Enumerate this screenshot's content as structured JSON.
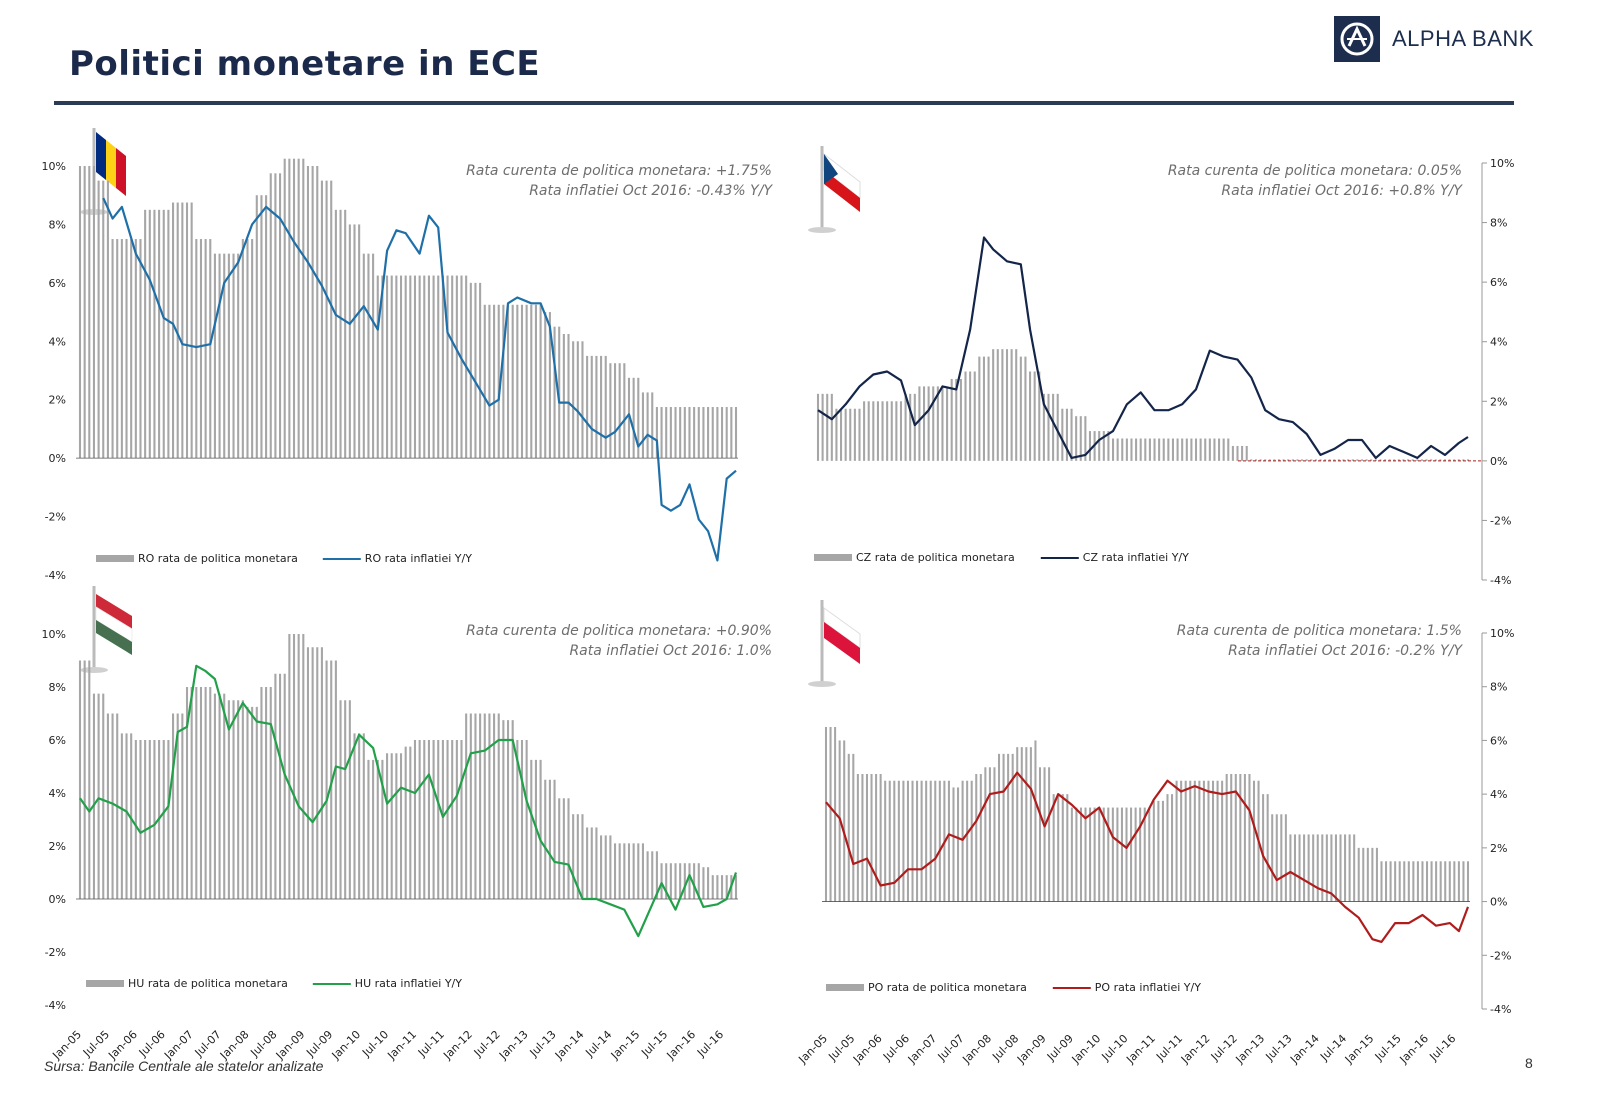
{
  "page": {
    "title": "Politici monetare in ECE",
    "logo_text": "ALPHA BANK",
    "source": "Sursa: Bancile Centrale ale statelor analizate",
    "page_number": "8"
  },
  "colors": {
    "bars": "#a6a6a6",
    "title": "#1b2a4a",
    "ro_line": "#1f6fa8",
    "cz_line": "#14254a",
    "hu_line": "#22a04a",
    "po_line": "#b01c1c"
  },
  "x_tick_labels": [
    "Jan-05",
    "Jul-05",
    "Jan-06",
    "Jul-06",
    "Jan-07",
    "Jul-07",
    "Jan-08",
    "Jul-08",
    "Jan-09",
    "Jul-09",
    "Jan-10",
    "Jul-10",
    "Jan-11",
    "Jul-11",
    "Jan-12",
    "Jul-12",
    "Jan-13",
    "Jul-13",
    "Jan-14",
    "Jul-14",
    "Jan-15",
    "Jul-15",
    "Jan-16",
    "Jul-16"
  ],
  "y_tick_labels": [
    "10%",
    "8%",
    "6%",
    "4%",
    "2%",
    "0%",
    "-2%",
    "-4%"
  ],
  "chart_data": [
    {
      "type": "bar+line",
      "id": "RO",
      "annotation_line1": "Rata curenta de politica monetara: +1.75%",
      "annotation_line2": "Rata inflatiei Oct 2016: -0.43% Y/Y",
      "axis_side": "left",
      "ylim": [
        -4,
        10
      ],
      "series": [
        {
          "name": "RO rata de politica monetara",
          "kind": "bar",
          "x": [
            "2005-01",
            "2005-05",
            "2005-08",
            "2006-03",
            "2006-09",
            "2007-02",
            "2007-06",
            "2007-09",
            "2007-12",
            "2008-03",
            "2008-06",
            "2008-09",
            "2009-02",
            "2009-05",
            "2009-08",
            "2009-11",
            "2010-02",
            "2010-05",
            "2010-08",
            "2011-01",
            "2011-07",
            "2012-01",
            "2012-04",
            "2012-07",
            "2013-01",
            "2013-05",
            "2013-07",
            "2013-09",
            "2013-11",
            "2014-02",
            "2014-04",
            "2014-07",
            "2014-11",
            "2015-02",
            "2015-05",
            "2016-10"
          ],
          "values": [
            10.0,
            9.5,
            7.5,
            8.5,
            8.75,
            7.5,
            7.0,
            7.0,
            7.5,
            9.0,
            9.75,
            10.25,
            10.0,
            9.5,
            8.5,
            8.0,
            7.0,
            6.25,
            6.25,
            6.25,
            6.25,
            6.0,
            5.25,
            5.25,
            5.25,
            5.0,
            4.5,
            4.25,
            4.0,
            3.5,
            3.5,
            3.25,
            2.75,
            2.25,
            1.75,
            1.75
          ]
        },
        {
          "name": "RO rata inflatiei Y/Y",
          "kind": "line",
          "x": [
            "2005-06",
            "2005-08",
            "2005-10",
            "2006-01",
            "2006-04",
            "2006-07",
            "2006-09",
            "2006-11",
            "2007-02",
            "2007-05",
            "2007-08",
            "2007-11",
            "2008-02",
            "2008-05",
            "2008-08",
            "2008-11",
            "2009-02",
            "2009-05",
            "2009-08",
            "2009-11",
            "2010-02",
            "2010-05",
            "2010-07",
            "2010-09",
            "2010-11",
            "2011-02",
            "2011-04",
            "2011-06",
            "2011-08",
            "2011-11",
            "2012-02",
            "2012-05",
            "2012-07",
            "2012-09",
            "2012-11",
            "2013-02",
            "2013-04",
            "2013-06",
            "2013-08",
            "2013-10",
            "2013-12",
            "2014-03",
            "2014-06",
            "2014-08",
            "2014-11",
            "2015-01",
            "2015-03",
            "2015-05",
            "2015-06",
            "2015-08",
            "2015-10",
            "2015-12",
            "2016-02",
            "2016-04",
            "2016-06",
            "2016-08",
            "2016-10"
          ],
          "values": [
            8.9,
            8.2,
            8.6,
            7.0,
            6.1,
            4.8,
            4.6,
            3.9,
            3.8,
            3.9,
            6.0,
            6.7,
            8.0,
            8.6,
            8.2,
            7.4,
            6.7,
            5.9,
            4.9,
            4.6,
            5.2,
            4.4,
            7.1,
            7.8,
            7.7,
            7.0,
            8.3,
            7.9,
            4.3,
            3.4,
            2.6,
            1.8,
            2.0,
            5.3,
            5.5,
            5.3,
            5.3,
            4.5,
            1.9,
            1.9,
            1.6,
            1.0,
            0.7,
            0.9,
            1.5,
            0.4,
            0.8,
            0.6,
            -1.6,
            -1.8,
            -1.6,
            -0.9,
            -2.1,
            -2.5,
            -3.5,
            -0.7,
            -0.43
          ]
        }
      ]
    },
    {
      "type": "bar+line",
      "id": "CZ",
      "annotation_line1": "Rata curenta de politica monetara: 0.05%",
      "annotation_line2": "Rata inflatiei Oct 2016: +0.8% Y/Y",
      "axis_side": "right",
      "ylim": [
        -4,
        10
      ],
      "series": [
        {
          "name": "CZ rata de politica monetara",
          "kind": "bar",
          "x": [
            "2005-01",
            "2005-05",
            "2005-11",
            "2006-08",
            "2006-11",
            "2007-06",
            "2007-09",
            "2007-12",
            "2008-03",
            "2008-09",
            "2008-11",
            "2009-02",
            "2009-06",
            "2009-09",
            "2009-12",
            "2010-05",
            "2012-07",
            "2012-11",
            "2016-10"
          ],
          "values": [
            2.25,
            1.75,
            2.0,
            2.25,
            2.5,
            2.75,
            3.0,
            3.5,
            3.75,
            3.5,
            3.0,
            2.25,
            1.75,
            1.5,
            1.0,
            0.75,
            0.5,
            0.05,
            0.05
          ]
        },
        {
          "name": "CZ rata inflatiei Y/Y",
          "kind": "line",
          "x": [
            "2005-01",
            "2005-04",
            "2005-07",
            "2005-10",
            "2006-01",
            "2006-04",
            "2006-07",
            "2006-10",
            "2007-01",
            "2007-04",
            "2007-07",
            "2007-10",
            "2008-01",
            "2008-03",
            "2008-06",
            "2008-09",
            "2008-11",
            "2009-02",
            "2009-05",
            "2009-08",
            "2009-11",
            "2010-02",
            "2010-05",
            "2010-08",
            "2010-11",
            "2011-02",
            "2011-05",
            "2011-08",
            "2011-11",
            "2012-02",
            "2012-05",
            "2012-08",
            "2012-11",
            "2013-02",
            "2013-05",
            "2013-08",
            "2013-11",
            "2014-02",
            "2014-05",
            "2014-08",
            "2014-11",
            "2015-02",
            "2015-05",
            "2015-08",
            "2015-11",
            "2016-02",
            "2016-05",
            "2016-08",
            "2016-10"
          ],
          "values": [
            1.7,
            1.4,
            1.9,
            2.5,
            2.9,
            3.0,
            2.7,
            1.2,
            1.7,
            2.5,
            2.4,
            4.4,
            7.5,
            7.1,
            6.7,
            6.6,
            4.4,
            1.9,
            1.0,
            0.1,
            0.2,
            0.7,
            1.0,
            1.9,
            2.3,
            1.7,
            1.7,
            1.9,
            2.4,
            3.7,
            3.5,
            3.4,
            2.8,
            1.7,
            1.4,
            1.3,
            0.9,
            0.2,
            0.4,
            0.7,
            0.7,
            0.1,
            0.5,
            0.3,
            0.1,
            0.5,
            0.2,
            0.6,
            0.8
          ]
        }
      ]
    },
    {
      "type": "bar+line",
      "id": "HU",
      "annotation_line1": "Rata curenta de politica monetara: +0.90%",
      "annotation_line2": "Rata inflatiei Oct 2016: 1.0%",
      "axis_side": "left",
      "ylim": [
        -4,
        10
      ],
      "series": [
        {
          "name": "HU rata de politica monetara",
          "kind": "bar",
          "x": [
            "2005-01",
            "2005-04",
            "2005-07",
            "2005-10",
            "2006-01",
            "2006-07",
            "2006-09",
            "2006-12",
            "2007-06",
            "2007-09",
            "2008-01",
            "2008-04",
            "2008-07",
            "2008-10",
            "2008-12",
            "2009-02",
            "2009-06",
            "2009-09",
            "2009-12",
            "2010-03",
            "2010-07",
            "2010-11",
            "2011-01",
            "2011-12",
            "2012-08",
            "2012-11",
            "2013-02",
            "2013-05",
            "2013-08",
            "2013-11",
            "2014-02",
            "2014-05",
            "2014-08",
            "2015-03",
            "2015-06",
            "2016-03",
            "2016-05",
            "2016-10"
          ],
          "values": [
            9.0,
            7.75,
            7.0,
            6.25,
            6.0,
            6.0,
            7.0,
            8.0,
            7.75,
            7.5,
            7.25,
            8.0,
            8.5,
            10.0,
            10.0,
            9.5,
            9.0,
            7.5,
            6.25,
            5.25,
            5.5,
            5.75,
            6.0,
            7.0,
            6.75,
            6.0,
            5.25,
            4.5,
            3.8,
            3.2,
            2.7,
            2.4,
            2.1,
            1.8,
            1.35,
            1.2,
            0.9,
            0.9
          ]
        },
        {
          "name": "HU rata inflatiei Y/Y",
          "kind": "line",
          "x": [
            "2005-01",
            "2005-03",
            "2005-05",
            "2005-08",
            "2005-11",
            "2006-02",
            "2006-05",
            "2006-08",
            "2006-10",
            "2006-12",
            "2007-02",
            "2007-04",
            "2007-06",
            "2007-09",
            "2007-12",
            "2008-03",
            "2008-06",
            "2008-09",
            "2008-12",
            "2009-03",
            "2009-06",
            "2009-08",
            "2009-10",
            "2010-01",
            "2010-04",
            "2010-07",
            "2010-10",
            "2011-01",
            "2011-04",
            "2011-07",
            "2011-10",
            "2012-01",
            "2012-04",
            "2012-07",
            "2012-10",
            "2013-01",
            "2013-04",
            "2013-07",
            "2013-10",
            "2014-01",
            "2014-04",
            "2014-07",
            "2014-10",
            "2015-01",
            "2015-03",
            "2015-06",
            "2015-09",
            "2015-12",
            "2016-03",
            "2016-06",
            "2016-08",
            "2016-10"
          ],
          "values": [
            3.8,
            3.3,
            3.8,
            3.6,
            3.3,
            2.5,
            2.8,
            3.5,
            6.3,
            6.5,
            8.8,
            8.6,
            8.3,
            6.4,
            7.4,
            6.7,
            6.6,
            4.7,
            3.5,
            2.9,
            3.7,
            5.0,
            4.9,
            6.2,
            5.7,
            3.6,
            4.2,
            4.0,
            4.7,
            3.1,
            3.9,
            5.5,
            5.6,
            6.0,
            6.0,
            3.7,
            2.2,
            1.4,
            1.3,
            0.0,
            0.0,
            -0.2,
            -0.4,
            -1.4,
            -0.6,
            0.6,
            -0.4,
            0.9,
            -0.3,
            -0.2,
            0.0,
            1.0
          ]
        }
      ]
    },
    {
      "type": "bar+line",
      "id": "PO",
      "annotation_line1": "Rata curenta de politica monetara: 1.5%",
      "annotation_line2": "Rata inflatiei Oct 2016: -0.2% Y/Y",
      "axis_side": "right",
      "ylim": [
        -4,
        10
      ],
      "series": [
        {
          "name": "PO rata de politica monetara",
          "kind": "bar",
          "x": [
            "2005-01",
            "2005-04",
            "2005-06",
            "2005-08",
            "2006-02",
            "2007-05",
            "2007-07",
            "2007-10",
            "2007-12",
            "2008-03",
            "2008-07",
            "2008-11",
            "2008-12",
            "2009-03",
            "2009-07",
            "2011-01",
            "2011-04",
            "2011-06",
            "2012-05",
            "2012-11",
            "2013-01",
            "2013-03",
            "2013-07",
            "2014-10",
            "2015-03",
            "2016-10"
          ],
          "values": [
            6.5,
            6.0,
            5.5,
            4.75,
            4.5,
            4.25,
            4.5,
            4.75,
            5.0,
            5.5,
            5.75,
            6.0,
            5.0,
            4.0,
            3.5,
            3.75,
            4.0,
            4.5,
            4.75,
            4.5,
            4.0,
            3.25,
            2.5,
            2.0,
            1.5,
            1.5
          ]
        },
        {
          "name": "PO rata inflatiei Y/Y",
          "kind": "line",
          "x": [
            "2005-01",
            "2005-04",
            "2005-07",
            "2005-10",
            "2006-01",
            "2006-04",
            "2006-07",
            "2006-10",
            "2007-01",
            "2007-04",
            "2007-07",
            "2007-10",
            "2008-01",
            "2008-04",
            "2008-07",
            "2008-10",
            "2009-01",
            "2009-04",
            "2009-07",
            "2009-10",
            "2010-01",
            "2010-04",
            "2010-07",
            "2010-10",
            "2011-01",
            "2011-04",
            "2011-07",
            "2011-10",
            "2012-01",
            "2012-04",
            "2012-07",
            "2012-10",
            "2013-01",
            "2013-04",
            "2013-07",
            "2013-10",
            "2014-01",
            "2014-04",
            "2014-07",
            "2014-10",
            "2015-01",
            "2015-03",
            "2015-06",
            "2015-09",
            "2015-12",
            "2016-03",
            "2016-06",
            "2016-08",
            "2016-10"
          ],
          "values": [
            3.7,
            3.1,
            1.4,
            1.6,
            0.6,
            0.7,
            1.2,
            1.2,
            1.6,
            2.5,
            2.3,
            3.0,
            4.0,
            4.1,
            4.8,
            4.2,
            2.8,
            4.0,
            3.6,
            3.1,
            3.5,
            2.4,
            2.0,
            2.8,
            3.8,
            4.5,
            4.1,
            4.3,
            4.1,
            4.0,
            4.1,
            3.4,
            1.7,
            0.8,
            1.1,
            0.8,
            0.5,
            0.3,
            -0.2,
            -0.6,
            -1.4,
            -1.5,
            -0.8,
            -0.8,
            -0.5,
            -0.9,
            -0.8,
            -1.1,
            -0.2
          ]
        }
      ]
    }
  ]
}
